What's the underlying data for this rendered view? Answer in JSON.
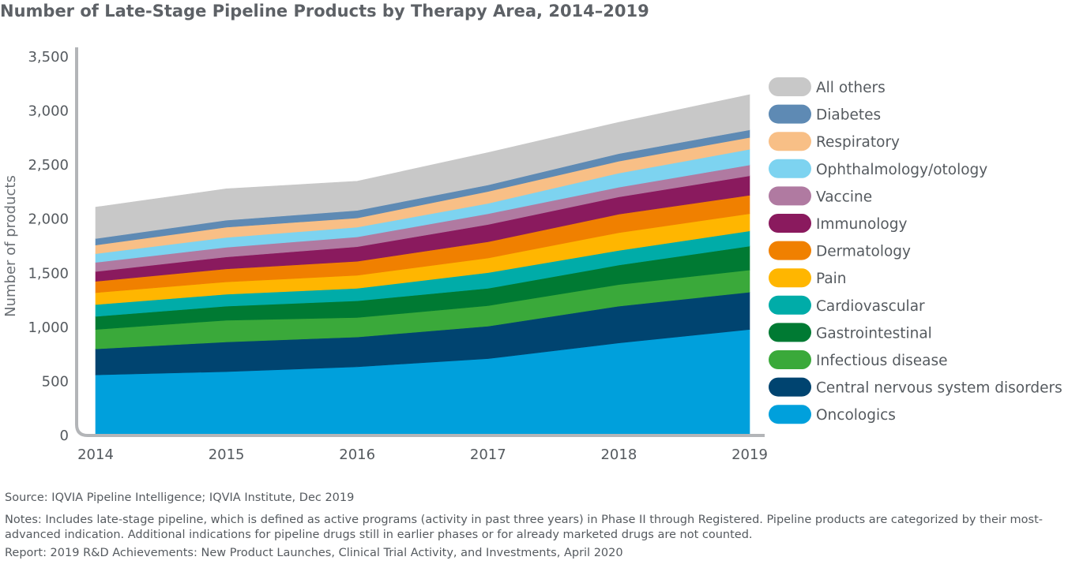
{
  "title": "Number of Late-Stage Pipeline Products by Therapy Area, 2014–2019",
  "source": "Source: IQVIA Pipeline Intelligence; IQVIA Institute, Dec 2019",
  "notes": "Notes: Includes late-stage pipeline, which is defined as active programs (activity in past three years) in Phase II through Registered. Pipeline products are categorized by their most-advanced indication. Additional indications for pipeline drugs still in earlier phases or for already marketed drugs are not counted.",
  "report": "Report: 2019 R&D Achievements: New Product Launches, Clinical Trial Activity, and Investments, April 2020",
  "chart_data": {
    "type": "area",
    "stacked": true,
    "title": "Number of Late-Stage Pipeline Products by Therapy Area, 2014–2019",
    "xlabel": "",
    "ylabel": "Number of products",
    "x": [
      "2014",
      "2015",
      "2016",
      "2017",
      "2018",
      "2019"
    ],
    "ylim": [
      0,
      3500
    ],
    "yticks": [
      0,
      500,
      1000,
      1500,
      2000,
      2500,
      3000,
      3500
    ],
    "ytick_labels": [
      "0",
      "500",
      "1,000",
      "1,500",
      "2,000",
      "2,500",
      "3,000",
      "3,500"
    ],
    "grid": false,
    "legend_position": "right",
    "series": [
      {
        "name": "Oncologics",
        "color": "#00a0dc",
        "values": [
          560,
          590,
          635,
          710,
          855,
          980
        ]
      },
      {
        "name": "Central nervous system disorders",
        "color": "#004470",
        "values": [
          240,
          275,
          275,
          300,
          340,
          345
        ]
      },
      {
        "name": "Infectious disease",
        "color": "#3aa93a",
        "values": [
          180,
          200,
          180,
          190,
          200,
          205
        ]
      },
      {
        "name": "Gastrointestinal",
        "color": "#007a33",
        "values": [
          120,
          130,
          155,
          160,
          180,
          220
        ]
      },
      {
        "name": "Cardiovascular",
        "color": "#00aca8",
        "values": [
          110,
          110,
          115,
          145,
          135,
          140
        ]
      },
      {
        "name": "Pain",
        "color": "#ffb600",
        "values": [
          110,
          115,
          120,
          135,
          165,
          160
        ]
      },
      {
        "name": "Dermatology",
        "color": "#f08000",
        "values": [
          105,
          120,
          130,
          150,
          170,
          170
        ]
      },
      {
        "name": "Immunology",
        "color": "#8a1a5e",
        "values": [
          90,
          110,
          135,
          160,
          160,
          180
        ]
      },
      {
        "name": "Vaccine",
        "color": "#b07aa1",
        "values": [
          85,
          90,
          90,
          100,
          90,
          100
        ]
      },
      {
        "name": "Ophthalmology/otology",
        "color": "#7dd3f0",
        "values": [
          80,
          90,
          90,
          95,
          130,
          145
        ]
      },
      {
        "name": "Respiratory",
        "color": "#f8bf86",
        "values": [
          80,
          95,
          85,
          110,
          110,
          110
        ]
      },
      {
        "name": "Diabetes",
        "color": "#5e8ab4",
        "values": [
          60,
          65,
          70,
          60,
          70,
          70
        ]
      },
      {
        "name": "All others",
        "color": "#c8c8c8",
        "values": [
          290,
          290,
          270,
          300,
          290,
          325
        ]
      }
    ]
  }
}
